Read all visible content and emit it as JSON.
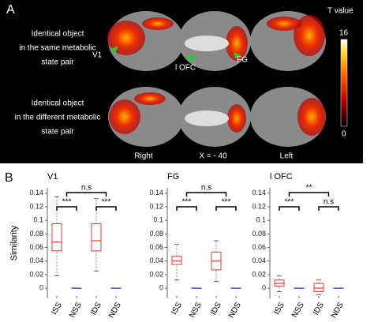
{
  "panel_a": {
    "label": "A",
    "row_labels": [
      [
        "Identical object",
        "in the same metabolic",
        "state pair"
      ],
      [
        "Identical object",
        "in the different metabolic",
        "state pair"
      ]
    ],
    "markers": [
      "V1",
      "l OFC",
      "FG"
    ],
    "views": [
      "Right",
      "X = - 40",
      "Left"
    ],
    "colorbar": {
      "title": "T value",
      "max": "16",
      "min": "0"
    }
  },
  "panel_b": {
    "label": "B"
  },
  "chart_data": [
    {
      "type": "box",
      "title": "V1",
      "ylabel": "Similarity",
      "categories": [
        "ISS",
        "NSS",
        "IDS",
        "NDS"
      ],
      "stats": [
        [
          0.018,
          0.055,
          0.068,
          0.095,
          0.135
        ],
        [
          0,
          0,
          0,
          0,
          0
        ],
        [
          0.025,
          0.055,
          0.07,
          0.095,
          0.132
        ],
        [
          0,
          0,
          0,
          0,
          0
        ]
      ],
      "colors": [
        "#e8392c",
        "#2233bb",
        "#e8392c",
        "#2233bb"
      ],
      "annotations": [
        "***",
        "***",
        "n.s"
      ],
      "ylim": [
        -0.015,
        0.148
      ],
      "yticks": [
        0,
        0.02,
        0.04,
        0.06,
        0.08,
        0.1,
        0.12,
        0.14
      ]
    },
    {
      "type": "box",
      "title": "FG",
      "categories": [
        "ISS",
        "NSS",
        "IDS",
        "NDS"
      ],
      "stats": [
        [
          0.012,
          0.035,
          0.04,
          0.047,
          0.065
        ],
        [
          0,
          0,
          0,
          0,
          0
        ],
        [
          0.01,
          0.027,
          0.04,
          0.053,
          0.07
        ],
        [
          0,
          0,
          0,
          0,
          0
        ]
      ],
      "colors": [
        "#e8392c",
        "#2233bb",
        "#e8392c",
        "#2233bb"
      ],
      "annotations": [
        "***",
        "***",
        "n.s"
      ],
      "ylim": [
        -0.015,
        0.148
      ],
      "yticks": [
        0,
        0.02,
        0.04,
        0.06,
        0.08,
        0.1,
        0.12,
        0.14
      ]
    },
    {
      "type": "box",
      "title": "l OFC",
      "categories": [
        "ISS",
        "NSS",
        "IDS",
        "NDS"
      ],
      "stats": [
        [
          -0.005,
          0.003,
          0.007,
          0.012,
          0.018
        ],
        [
          0,
          0,
          0,
          0,
          0
        ],
        [
          -0.01,
          -0.005,
          0,
          0.007,
          0.012
        ],
        [
          0,
          0,
          0,
          0,
          0
        ]
      ],
      "colors": [
        "#e8392c",
        "#2233bb",
        "#e8392c",
        "#2233bb"
      ],
      "annotations": [
        "***",
        "n.s",
        "**"
      ],
      "ylim": [
        -0.015,
        0.148
      ],
      "yticks": [
        0,
        0.02,
        0.04,
        0.06,
        0.08,
        0.1,
        0.12,
        0.14
      ]
    }
  ]
}
